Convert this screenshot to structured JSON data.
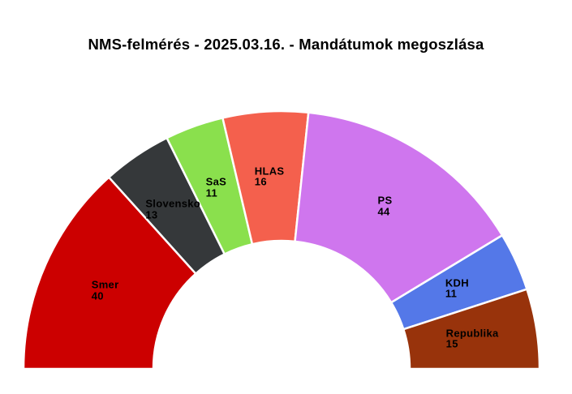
{
  "page": {
    "background": "#ffffff",
    "separator_color": "#ffffff",
    "label_color": "#000000",
    "title_color": "#000000"
  },
  "chart_data": {
    "type": "half-donut",
    "title": "NMS-felmérés - 2025.03.16. - Mandátumok megoszlása",
    "total_seats": 150,
    "orientation": "semicircle-180",
    "legend_position": "none",
    "series": [
      {
        "name": "Smer",
        "value": 40,
        "color": "#cc0000"
      },
      {
        "name": "Slovensko",
        "value": 13,
        "color": "#35383a"
      },
      {
        "name": "SaS",
        "value": 11,
        "color": "#8ae04d"
      },
      {
        "name": "HLAS",
        "value": 16,
        "color": "#f4604d"
      },
      {
        "name": "PS",
        "value": 44,
        "color": "#cf76ee"
      },
      {
        "name": "KDH",
        "value": 11,
        "color": "#5478e8"
      },
      {
        "name": "Republika",
        "value": 15,
        "color": "#98330b"
      }
    ]
  }
}
